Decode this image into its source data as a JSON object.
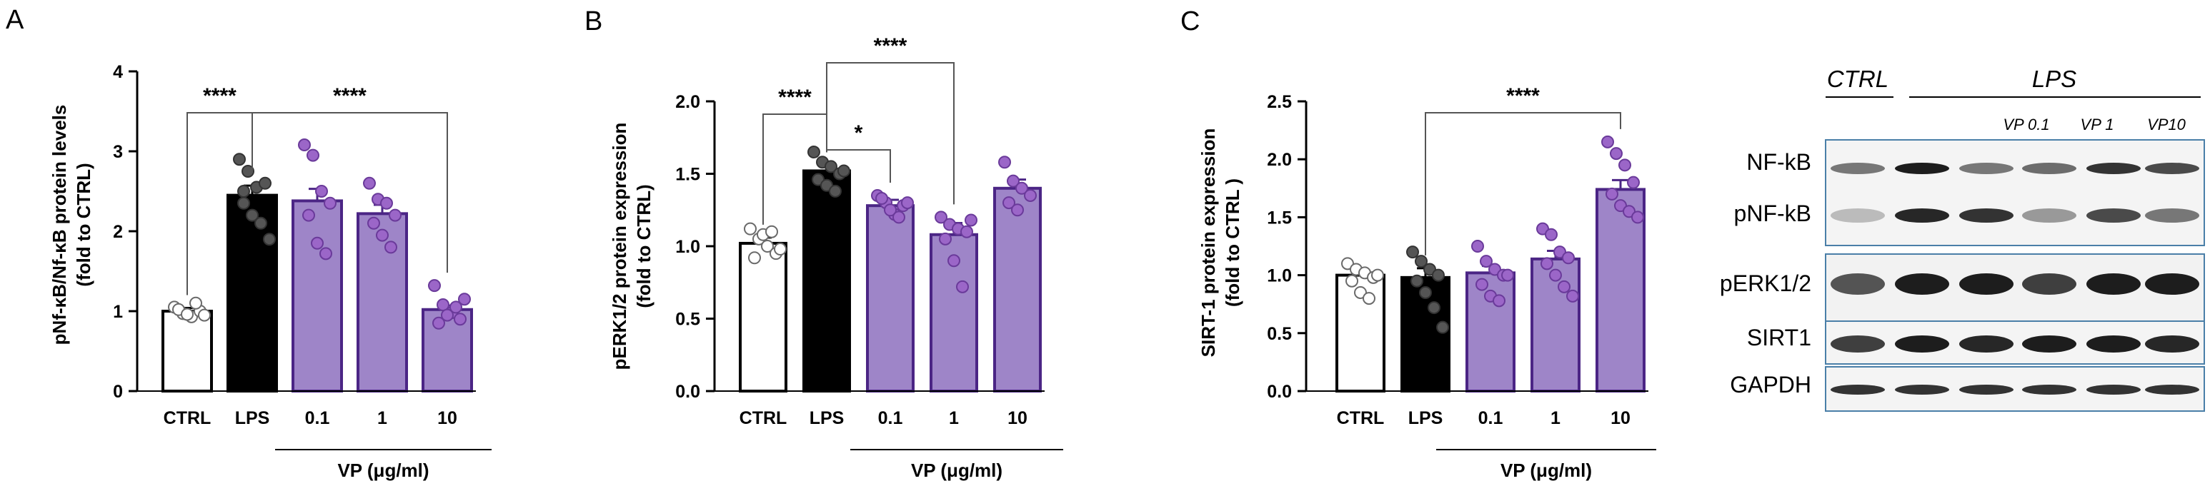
{
  "chart_data": [
    {
      "type": "bar",
      "panel": "A",
      "categories": [
        "CTRL",
        "LPS",
        "0.1",
        "1",
        "10"
      ],
      "values": [
        1.0,
        2.45,
        2.38,
        2.22,
        1.02
      ],
      "errors": [
        0.04,
        0.12,
        0.15,
        0.11,
        0.05
      ],
      "points": [
        [
          1.05,
          0.97,
          0.93,
          1.0,
          1.02,
          0.96,
          1.1,
          0.95
        ],
        [
          2.9,
          2.75,
          2.55,
          2.6,
          2.35,
          2.2,
          2.1,
          1.9,
          2.5
        ],
        [
          3.08,
          2.95,
          2.5,
          2.35,
          2.2,
          1.85,
          1.72
        ],
        [
          2.6,
          2.4,
          2.35,
          2.2,
          2.1,
          1.95,
          1.8
        ],
        [
          1.32,
          1.08,
          0.98,
          0.9,
          0.85,
          0.95,
          1.05,
          1.15
        ]
      ],
      "bar_colors": [
        "#ffffff",
        "#000000",
        "#9e85c8",
        "#9e85c8",
        "#9e85c8"
      ],
      "ylabel": "pNf-κB/Nf-κB protein levels",
      "ylabel2": "(fold to CTRL)",
      "yticks": [
        "0",
        "1",
        "2",
        "3",
        "4"
      ],
      "ylim": [
        0,
        4
      ],
      "group_label": "VP (μg/ml)",
      "significance": [
        {
          "from": 0,
          "to": 1,
          "label": "****"
        },
        {
          "from": 1,
          "to": 4,
          "label": "****"
        }
      ]
    },
    {
      "type": "bar",
      "panel": "B",
      "categories": [
        "CTRL",
        "LPS",
        "0.1",
        "1",
        "10"
      ],
      "values": [
        1.02,
        1.52,
        1.28,
        1.08,
        1.4
      ],
      "errors": [
        0.04,
        0.04,
        0.04,
        0.08,
        0.06
      ],
      "points": [
        [
          1.12,
          1.05,
          1.0,
          0.95,
          0.92,
          1.08,
          1.1,
          0.98
        ],
        [
          1.65,
          1.58,
          1.55,
          1.5,
          1.46,
          1.42,
          1.38,
          1.52
        ],
        [
          1.35,
          1.3,
          1.22,
          1.28,
          1.33,
          1.25,
          1.2,
          1.3
        ],
        [
          1.2,
          1.15,
          1.12,
          1.1,
          1.05,
          0.9,
          0.72,
          1.18
        ],
        [
          1.58,
          1.45,
          1.4,
          1.35,
          1.3,
          1.25
        ]
      ],
      "bar_colors": [
        "#ffffff",
        "#000000",
        "#9e85c8",
        "#9e85c8",
        "#9e85c8"
      ],
      "ylabel": "pERK1/2 protein expression",
      "ylabel2": "(fold to CTRL)",
      "yticks": [
        "0.0",
        "0.5",
        "1.0",
        "1.5",
        "2.0"
      ],
      "ylim": [
        0,
        2
      ],
      "group_label": "VP (μg/ml)",
      "significance": [
        {
          "from": 0,
          "to": 1,
          "label": "****"
        },
        {
          "from": 1,
          "to": 2,
          "label": "*"
        },
        {
          "from": 1,
          "to": 3,
          "label": "****"
        }
      ]
    },
    {
      "type": "bar",
      "panel": "C",
      "categories": [
        "CTRL",
        "LPS",
        "0.1",
        "1",
        "10"
      ],
      "values": [
        1.0,
        0.98,
        1.02,
        1.14,
        1.74
      ],
      "errors": [
        0.04,
        0.08,
        0.06,
        0.07,
        0.08
      ],
      "points": [
        [
          1.1,
          1.05,
          1.02,
          0.98,
          0.95,
          0.85,
          0.8,
          1.0
        ],
        [
          1.2,
          1.12,
          1.05,
          1.0,
          0.95,
          0.85,
          0.72,
          0.55
        ],
        [
          1.25,
          1.12,
          1.05,
          1.0,
          0.92,
          0.82,
          0.78,
          1.0
        ],
        [
          1.4,
          1.35,
          1.2,
          1.15,
          1.1,
          1.0,
          0.9,
          0.82
        ],
        [
          2.15,
          2.05,
          1.95,
          1.8,
          1.7,
          1.6,
          1.55,
          1.5
        ]
      ],
      "bar_colors": [
        "#ffffff",
        "#000000",
        "#9e85c8",
        "#9e85c8",
        "#9e85c8"
      ],
      "ylabel": "SIRT-1 protein expression",
      "ylabel2": "(fold to CTRL )",
      "yticks": [
        "0.0",
        "0.5",
        "1.0",
        "1.5",
        "2.0",
        "2.5"
      ],
      "ylim": [
        0,
        2.5
      ],
      "group_label": "VP (μg/ml)",
      "significance": [
        {
          "from": 1,
          "to": 4,
          "label": "****"
        }
      ]
    }
  ],
  "panel_labels": [
    "A",
    "B",
    "C"
  ],
  "western_blot": {
    "headers": [
      "CTRL",
      "LPS"
    ],
    "subheaders": [
      "VP 0.1",
      "VP 1",
      "VP10"
    ],
    "rows": [
      "NF-kB",
      "pNF-kB",
      "pERK1/2",
      "SIRT1",
      "GAPDH"
    ],
    "frame_color": "#4a7fa8"
  }
}
